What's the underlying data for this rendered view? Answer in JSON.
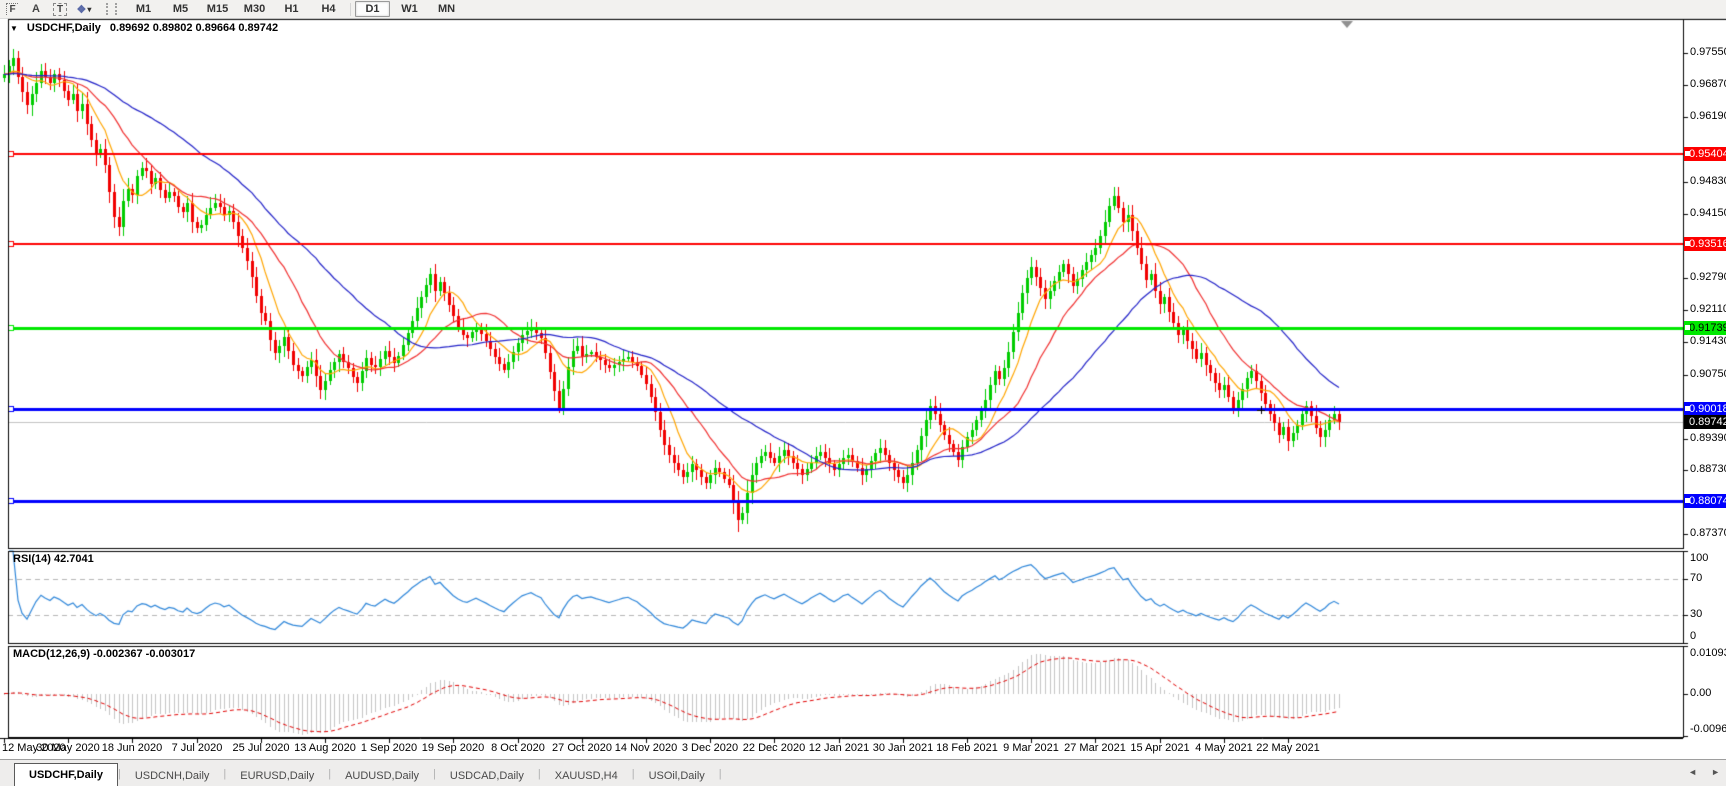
{
  "toolbar": {
    "tools": [
      {
        "name": "fibonacci-tool",
        "glyph": "F"
      },
      {
        "name": "text-label-tool",
        "glyph": "A"
      },
      {
        "name": "text-tool",
        "glyph": "T"
      },
      {
        "name": "arrows-tool",
        "glyph": "❖"
      }
    ],
    "dropdown_glyph": "▾",
    "timeframes": [
      "M1",
      "M5",
      "M15",
      "M30",
      "H1",
      "H4",
      "D1",
      "W1",
      "MN"
    ],
    "active_timeframe": "D1"
  },
  "chart": {
    "collapse_glyph": "▼",
    "title_symbol": "USDCHF,Daily",
    "quote_string": "0.89692 0.89802 0.89664 0.89742",
    "open": "0.89692",
    "high": "0.89802",
    "low": "0.89664",
    "close": "0.89742"
  },
  "chart_data": {
    "type": "candlestick",
    "symbol": "USDCHF",
    "period": "Daily",
    "up_color": "#00cc00",
    "down_color": "#f10000",
    "price_axis": {
      "at_top": 0.9827,
      "at_bottom": 0.8708,
      "ticks": [
        {
          "label": "0.97550",
          "value": 0.9755
        },
        {
          "label": "0.96870",
          "value": 0.9687
        },
        {
          "label": "0.96190",
          "value": 0.9619
        },
        {
          "label": "0.94830",
          "value": 0.9483
        },
        {
          "label": "0.94150",
          "value": 0.9415
        },
        {
          "label": "0.92790",
          "value": 0.9279
        },
        {
          "label": "0.92110",
          "value": 0.9211
        },
        {
          "label": "0.91430",
          "value": 0.9143
        },
        {
          "label": "0.90750",
          "value": 0.9075
        },
        {
          "label": "0.89390",
          "value": 0.8939
        },
        {
          "label": "0.88730",
          "value": 0.8873
        },
        {
          "label": "0.87370",
          "value": 0.8737
        }
      ]
    },
    "x_axis": {
      "labels": [
        "12 May 2020",
        "30 May 2020",
        "18 Jun 2020",
        "7 Jul 2020",
        "25 Jul 2020",
        "13 Aug 2020",
        "1 Sep 2020",
        "19 Sep 2020",
        "8 Oct 2020",
        "27 Oct 2020",
        "14 Nov 2020",
        "3 Dec 2020",
        "22 Dec 2020",
        "12 Jan 2021",
        "30 Jan 2021",
        "18 Feb 2021",
        "9 Mar 2021",
        "27 Mar 2021",
        "15 Apr 2021",
        "4 May 2021",
        "22 May 2021"
      ],
      "bars_per_label": 14
    },
    "closes": [
      0.971,
      0.9728,
      0.9745,
      0.9705,
      0.9672,
      0.9645,
      0.9668,
      0.9692,
      0.9718,
      0.9705,
      0.9692,
      0.971,
      0.9698,
      0.9675,
      0.9655,
      0.9668,
      0.9632,
      0.9648,
      0.9605,
      0.9572,
      0.954,
      0.9552,
      0.9518,
      0.9462,
      0.9408,
      0.9388,
      0.9442,
      0.9468,
      0.9455,
      0.9495,
      0.9512,
      0.9505,
      0.9478,
      0.949,
      0.9465,
      0.9448,
      0.946,
      0.9452,
      0.943,
      0.9418,
      0.9438,
      0.9398,
      0.9385,
      0.9392,
      0.9412,
      0.9428,
      0.9438,
      0.943,
      0.9412,
      0.942,
      0.9398,
      0.9368,
      0.9342,
      0.9315,
      0.9282,
      0.9242,
      0.9205,
      0.9188,
      0.9148,
      0.912,
      0.9135,
      0.9155,
      0.9125,
      0.9095,
      0.9082,
      0.9072,
      0.909,
      0.9105,
      0.9072,
      0.9042,
      0.9062,
      0.9085,
      0.9102,
      0.9118,
      0.9102,
      0.9088,
      0.907,
      0.9058,
      0.9082,
      0.911,
      0.9096,
      0.909,
      0.9108,
      0.9125,
      0.9112,
      0.91,
      0.9115,
      0.9138,
      0.9162,
      0.9188,
      0.9215,
      0.924,
      0.9265,
      0.9288,
      0.9252,
      0.927,
      0.9248,
      0.9222,
      0.9198,
      0.9175,
      0.9158,
      0.9152,
      0.9165,
      0.9175,
      0.916,
      0.9145,
      0.913,
      0.9112,
      0.9098,
      0.9085,
      0.9102,
      0.9122,
      0.9142,
      0.9158,
      0.9168,
      0.9175,
      0.9162,
      0.9152,
      0.912,
      0.908,
      0.904,
      0.9005,
      0.9045,
      0.909,
      0.9125,
      0.9135,
      0.9112,
      0.9118,
      0.9122,
      0.9112,
      0.9105,
      0.9095,
      0.9088,
      0.9095,
      0.9102,
      0.9108,
      0.9112,
      0.9102,
      0.9092,
      0.9075,
      0.9055,
      0.9028,
      0.8995,
      0.8958,
      0.8925,
      0.8905,
      0.8888,
      0.8872,
      0.8858,
      0.8868,
      0.8885,
      0.8872,
      0.8858,
      0.8845,
      0.8862,
      0.8878,
      0.8868,
      0.8855,
      0.8842,
      0.8805,
      0.8768,
      0.8782,
      0.8825,
      0.8862,
      0.8888,
      0.8902,
      0.8912,
      0.8898,
      0.8888,
      0.8902,
      0.8915,
      0.8902,
      0.8888,
      0.8875,
      0.8862,
      0.8875,
      0.8888,
      0.8902,
      0.8912,
      0.8898,
      0.8885,
      0.8872,
      0.8885,
      0.8898,
      0.8905,
      0.8892,
      0.8878,
      0.8862,
      0.8875,
      0.8892,
      0.8908,
      0.892,
      0.8905,
      0.8888,
      0.8872,
      0.8858,
      0.8845,
      0.8862,
      0.8888,
      0.8915,
      0.8945,
      0.8978,
      0.9008,
      0.8992,
      0.8968,
      0.8948,
      0.8928,
      0.8912,
      0.8895,
      0.8922,
      0.8942,
      0.8958,
      0.8978,
      0.8998,
      0.9022,
      0.9052,
      0.9082,
      0.9065,
      0.9088,
      0.9122,
      0.9165,
      0.9205,
      0.9248,
      0.928,
      0.9302,
      0.9282,
      0.9258,
      0.9235,
      0.9252,
      0.9272,
      0.9292,
      0.9308,
      0.9288,
      0.9262,
      0.9278,
      0.9295,
      0.9312,
      0.9328,
      0.9342,
      0.9368,
      0.9398,
      0.9432,
      0.9452,
      0.9428,
      0.9398,
      0.9412,
      0.9378,
      0.9342,
      0.9308,
      0.9275,
      0.9288,
      0.9252,
      0.9225,
      0.9238,
      0.9208,
      0.9185,
      0.9158,
      0.917,
      0.9145,
      0.9128,
      0.9108,
      0.912,
      0.9095,
      0.9078,
      0.9058,
      0.9042,
      0.9052,
      0.9028,
      0.9005,
      0.9022,
      0.9045,
      0.9068,
      0.9082,
      0.9062,
      0.9035,
      0.9012,
      0.8992,
      0.8972,
      0.8948,
      0.8965,
      0.8935,
      0.8952,
      0.8968,
      0.8992,
      0.9008,
      0.8988,
      0.8962,
      0.8942,
      0.8958,
      0.8978,
      0.8992,
      0.89742
    ],
    "moving_averages": [
      {
        "name": "fast-ma",
        "period": 8,
        "color": "#ffa500"
      },
      {
        "name": "medium-ma",
        "period": 18,
        "color": "#f03030"
      },
      {
        "name": "slow-ma",
        "period": 40,
        "color": "#2323c8"
      }
    ],
    "horizontal_lines": [
      {
        "value": 0.95404,
        "label": "0.95404",
        "color": "#fe0000",
        "thickness": 2,
        "text_color": "#ffffff"
      },
      {
        "value": 0.93516,
        "label": "0.93516",
        "color": "#fe0000",
        "thickness": 2,
        "text_color": "#ffffff"
      },
      {
        "value": 0.91739,
        "label": "0.91739",
        "color": "#00e800",
        "thickness": 3,
        "text_color": "#000000"
      },
      {
        "value": 0.90018,
        "label": "0.90018",
        "color": "#0000fe",
        "thickness": 3,
        "text_color": "#ffffff"
      },
      {
        "value": 0.88074,
        "label": "0.88074",
        "color": "#0000fe",
        "thickness": 3,
        "text_color": "#ffffff"
      }
    ],
    "current_price": {
      "value": 0.89742,
      "label": "0.89742",
      "line_color": "#c2c2c2",
      "box_color": "#000000",
      "text_color": "#ffffff"
    },
    "shift_marker_color": "#909090",
    "cross_marker": {
      "bar": 274,
      "value": 0.8999
    }
  },
  "indicators": {
    "rsi": {
      "label": "RSI(14) 42.7041",
      "period": 14,
      "value": "42.7041",
      "levels": [
        70,
        30
      ],
      "axis_ticks": [
        {
          "label": "100",
          "value": 100
        },
        {
          "label": "70",
          "value": 70
        },
        {
          "label": "30",
          "value": 30
        },
        {
          "label": "0",
          "value": 0
        }
      ],
      "line_color": "#2e86d9"
    },
    "macd": {
      "label": "MACD(12,26,9) -0.002367 -0.003017",
      "fast": 12,
      "slow": 26,
      "signal": 9,
      "value_main": "-0.002367",
      "value_signal": "-0.003017",
      "axis_ticks": [
        {
          "label": "0.010933",
          "value": 0.010933
        },
        {
          "label": "0.00",
          "value": 0
        },
        {
          "label": "-0.009653",
          "value": -0.009653
        }
      ],
      "histogram_color": "#c4c4c4",
      "signal_color": "#e00000"
    }
  },
  "tab_bar": {
    "tabs": [
      {
        "label": "USDCHF,Daily",
        "active": true
      },
      {
        "label": "USDCNH,Daily",
        "active": false
      },
      {
        "label": "EURUSD,Daily",
        "active": false
      },
      {
        "label": "AUDUSD,Daily",
        "active": false
      },
      {
        "label": "USDCAD,Daily",
        "active": false
      },
      {
        "label": "XAUUSD,H4",
        "active": false
      },
      {
        "label": "USOil,Daily",
        "active": false
      }
    ],
    "scroll_left_icon": "◄",
    "scroll_right_icon": "►"
  }
}
